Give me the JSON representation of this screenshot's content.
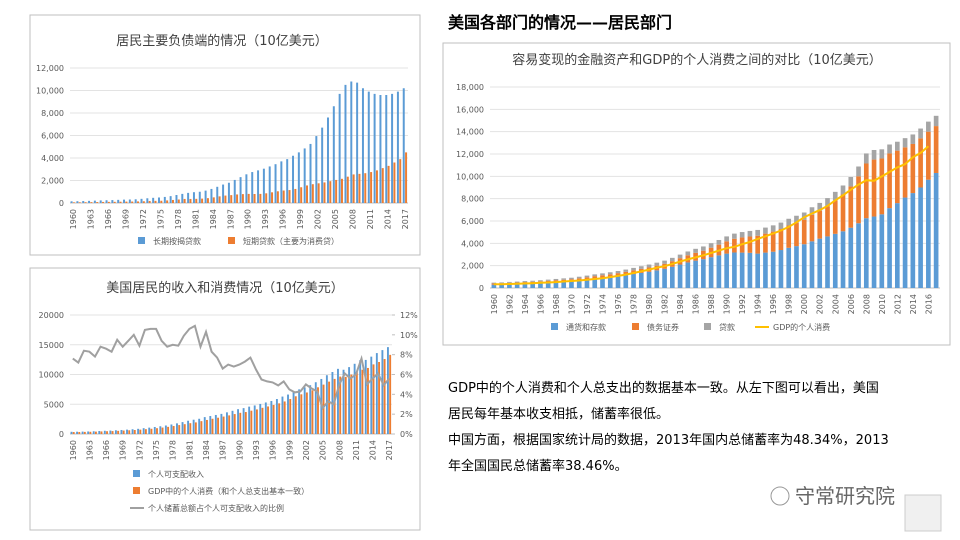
{
  "header": {
    "title": "美国各部门的情况——居民部门"
  },
  "text": {
    "lines": [
      "GDP中的个人消费和个人总支出的数据基本一致。从左下图可以看出，美国",
      "居民每年基本收支相抵，储蓄率很低。",
      "中国方面，根据国家统计局的数据，2013年国内总储蓄率为48.34%，2013",
      "年全国国民总储蓄率38.46%。"
    ]
  },
  "logo": {
    "name": "守常研究院"
  },
  "chart_data": [
    {
      "type": "bar",
      "title": "居民主要负债端的情况（10亿美元）",
      "grid": true,
      "legend": "bottom",
      "categories": [
        "1960",
        null,
        null,
        "1963",
        null,
        null,
        "1966",
        null,
        null,
        "1969",
        null,
        null,
        "1972",
        null,
        null,
        "1975",
        null,
        null,
        "1978",
        null,
        null,
        "1981",
        null,
        null,
        "1984",
        null,
        null,
        "1987",
        null,
        null,
        "1990",
        null,
        null,
        "1993",
        null,
        null,
        "1996",
        null,
        null,
        "1999",
        null,
        null,
        "2002",
        null,
        null,
        "2005",
        null,
        null,
        "2008",
        null,
        null,
        "2011",
        null,
        null,
        "2014",
        null,
        null,
        "2017"
      ],
      "ylim": [
        0,
        12000
      ],
      "yticks": [
        0,
        {
          "value": 2000,
          "label": "2,000"
        },
        {
          "value": 4000,
          "label": "4,000"
        },
        {
          "value": 6000,
          "label": "6,000"
        },
        {
          "value": 8000,
          "label": "8,000"
        },
        {
          "value": 10000,
          "label": "10,000"
        },
        {
          "value": 12000,
          "label": "12,000"
        }
      ],
      "series": [
        {
          "name": "长期按揭贷款",
          "color": "#5b9bd5",
          "values": [
            150,
            160,
            175,
            190,
            210,
            230,
            245,
            260,
            280,
            300,
            310,
            330,
            370,
            420,
            460,
            490,
            540,
            610,
            710,
            810,
            900,
            960,
            1000,
            1100,
            1250,
            1440,
            1640,
            1800,
            2050,
            2300,
            2550,
            2750,
            2900,
            3050,
            3250,
            3450,
            3700,
            3900,
            4200,
            4500,
            4850,
            5250,
            5950,
            6700,
            7600,
            8600,
            9700,
            10500,
            10800,
            10700,
            10200,
            9900,
            9700,
            9600,
            9600,
            9700,
            9900,
            10200
          ]
        },
        {
          "name": "短期贷款（主要为消费贷）",
          "color": "#ed7d31",
          "values": [
            60,
            65,
            70,
            78,
            85,
            95,
            100,
            105,
            115,
            125,
            130,
            140,
            155,
            180,
            190,
            200,
            230,
            270,
            310,
            360,
            360,
            370,
            390,
            430,
            500,
            590,
            660,
            700,
            760,
            790,
            810,
            800,
            810,
            860,
            950,
            1040,
            1110,
            1150,
            1250,
            1400,
            1560,
            1670,
            1750,
            1830,
            1940,
            2050,
            2150,
            2340,
            2540,
            2590,
            2650,
            2750,
            2900,
            3100,
            3300,
            3600,
            3900,
            4500
          ]
        }
      ]
    },
    {
      "type": "bar",
      "title": "美国居民的收入和消费情况（10亿美元）",
      "grid": true,
      "legend": "bottom",
      "categories": [
        "1960",
        null,
        null,
        "1963",
        null,
        null,
        "1966",
        null,
        null,
        "1969",
        null,
        null,
        "1972",
        null,
        null,
        "1975",
        null,
        null,
        "1978",
        null,
        null,
        "1981",
        null,
        null,
        "1984",
        null,
        null,
        "1987",
        null,
        null,
        "1990",
        null,
        null,
        "1993",
        null,
        null,
        "1996",
        null,
        null,
        "1999",
        null,
        null,
        "2002",
        null,
        null,
        "2005",
        null,
        null,
        "2008",
        null,
        null,
        "2011",
        null,
        null,
        "2014",
        null,
        null,
        "2017"
      ],
      "ylim": [
        0,
        20000
      ],
      "yticks": [
        0,
        5000,
        10000,
        15000,
        20000
      ],
      "y2lim": [
        0,
        12
      ],
      "y2ticks": [
        {
          "value": 0,
          "label": "0%"
        },
        {
          "value": 2,
          "label": "2%"
        },
        {
          "value": 4,
          "label": "4%"
        },
        {
          "value": 6,
          "label": "6%"
        },
        {
          "value": 8,
          "label": "8%"
        },
        {
          "value": 10,
          "label": "10%"
        },
        {
          "value": 12,
          "label": "12%"
        }
      ],
      "series": [
        {
          "name": "个人可支配收入",
          "color": "#5b9bd5",
          "values": [
            370,
            385,
            405,
            425,
            460,
            500,
            540,
            575,
            625,
            675,
            735,
            800,
            870,
            980,
            1070,
            1180,
            1300,
            1430,
            1600,
            1790,
            2000,
            2230,
            2400,
            2560,
            2840,
            3020,
            3200,
            3380,
            3640,
            3900,
            4170,
            4350,
            4600,
            4800,
            5050,
            5300,
            5550,
            5880,
            6290,
            6630,
            7190,
            7500,
            7840,
            8200,
            8700,
            9250,
            9880,
            10420,
            10950,
            10800,
            11240,
            11800,
            12400,
            12450,
            13000,
            13600,
            14100,
            14600
          ]
        },
        {
          "name": "GDP中的个人消费（和个人总支出基本一致）",
          "color": "#ed7d31",
          "values": [
            330,
            340,
            355,
            375,
            400,
            430,
            465,
            490,
            530,
            580,
            625,
            670,
            735,
            810,
            880,
            975,
            1080,
            1200,
            1340,
            1500,
            1650,
            1820,
            1950,
            2160,
            2360,
            2560,
            2740,
            2930,
            3130,
            3350,
            3560,
            3690,
            3920,
            4130,
            4400,
            4630,
            4880,
            5150,
            5470,
            5880,
            6340,
            6670,
            6980,
            7350,
            7850,
            8300,
            8800,
            9260,
            9650,
            9600,
            9990,
            10400,
            10800,
            11100,
            11700,
            12100,
            12600,
            13300
          ]
        },
        {
          "name": "个人储蓄总额占个人可支配收入的比例",
          "color": "#a0a0a0",
          "type": "line",
          "axis": "y2",
          "values": [
            7.6,
            7.2,
            8.4,
            8.3,
            7.8,
            8.8,
            8.6,
            8.3,
            9.5,
            8.8,
            9.4,
            10.0,
            8.9,
            10.5,
            10.6,
            10.6,
            9.4,
            8.8,
            9.0,
            8.9,
            9.9,
            10.6,
            10.9,
            8.8,
            10.3,
            8.3,
            7.7,
            6.6,
            7.0,
            6.8,
            7.0,
            7.3,
            7.7,
            6.5,
            5.5,
            5.3,
            5.2,
            4.9,
            5.3,
            4.5,
            4.2,
            4.3,
            5.0,
            4.6,
            4.3,
            2.6,
            3.3,
            3.0,
            5.0,
            6.1,
            5.6,
            6.0,
            7.6,
            5.0,
            5.6,
            6.1,
            4.9,
            5.6
          ]
        }
      ]
    },
    {
      "type": "bar",
      "stacked": true,
      "title": "容易变现的金融资产和GDP的个人消费之间的对比（10亿美元）",
      "grid": true,
      "legend": "bottom",
      "categories": [
        "1960",
        null,
        "1962",
        null,
        "1964",
        null,
        "1966",
        null,
        "1968",
        null,
        "1970",
        null,
        "1972",
        null,
        "1974",
        null,
        "1976",
        null,
        "1978",
        null,
        "1980",
        null,
        "1982",
        null,
        "1984",
        null,
        "1986",
        null,
        "1988",
        null,
        "1990",
        null,
        "1992",
        null,
        "1994",
        null,
        "1996",
        null,
        "1998",
        null,
        "2000",
        null,
        "2002",
        null,
        "2004",
        null,
        "2006",
        null,
        "2008",
        null,
        "2010",
        null,
        "2012",
        null,
        "2014",
        null,
        "2016",
        null
      ],
      "ylim": [
        0,
        18000
      ],
      "yticks": [
        0,
        {
          "value": 2000,
          "label": "2,000"
        },
        {
          "value": 4000,
          "label": "4,000"
        },
        {
          "value": 6000,
          "label": "6,000"
        },
        {
          "value": 8000,
          "label": "8,000"
        },
        {
          "value": 10000,
          "label": "10,000"
        },
        {
          "value": 12000,
          "label": "12,000"
        },
        {
          "value": 14000,
          "label": "14,000"
        },
        {
          "value": 16000,
          "label": "16,000"
        },
        {
          "value": 18000,
          "label": "18,000"
        }
      ],
      "series": [
        {
          "name": "通货和存款",
          "color": "#5b9bd5",
          "values": [
            300,
            320,
            350,
            380,
            410,
            440,
            470,
            510,
            550,
            580,
            620,
            690,
            770,
            840,
            900,
            970,
            1050,
            1150,
            1250,
            1350,
            1450,
            1580,
            1720,
            1900,
            2100,
            2290,
            2450,
            2580,
            2760,
            2920,
            3080,
            3180,
            3170,
            3150,
            3080,
            3170,
            3250,
            3400,
            3600,
            3750,
            3920,
            4180,
            4420,
            4620,
            4850,
            5080,
            5400,
            5800,
            6250,
            6400,
            6600,
            7150,
            7600,
            8100,
            8500,
            9000,
            9700,
            10300
          ]
        },
        {
          "name": "债务证券",
          "color": "#ed7d31",
          "values": [
            100,
            100,
            110,
            110,
            120,
            120,
            130,
            140,
            150,
            160,
            170,
            180,
            190,
            220,
            240,
            260,
            280,
            300,
            330,
            360,
            390,
            420,
            450,
            500,
            570,
            640,
            700,
            760,
            850,
            960,
            1100,
            1230,
            1360,
            1460,
            1600,
            1700,
            1800,
            1880,
            2000,
            2100,
            2200,
            2380,
            2500,
            2700,
            3000,
            3300,
            3700,
            4200,
            4900,
            5100,
            5000,
            4900,
            4700,
            4500,
            4400,
            4400,
            4300,
            4200
          ]
        },
        {
          "name": "贷款",
          "color": "#a5a5a5",
          "values": [
            80,
            80,
            85,
            85,
            90,
            90,
            95,
            100,
            110,
            120,
            130,
            140,
            150,
            160,
            170,
            180,
            190,
            200,
            220,
            240,
            260,
            270,
            280,
            300,
            320,
            340,
            360,
            380,
            400,
            420,
            440,
            460,
            480,
            500,
            520,
            540,
            560,
            580,
            600,
            620,
            640,
            670,
            700,
            730,
            760,
            800,
            840,
            880,
            900,
            860,
            820,
            800,
            800,
            820,
            850,
            880,
            900,
            920
          ]
        },
        {
          "name": "GDP的个人消费",
          "color": "#ffc000",
          "type": "line",
          "values": [
            330,
            340,
            355,
            375,
            400,
            430,
            465,
            490,
            530,
            580,
            625,
            670,
            735,
            810,
            880,
            975,
            1080,
            1200,
            1340,
            1500,
            1650,
            1820,
            1950,
            2160,
            2360,
            2560,
            2740,
            2930,
            3130,
            3350,
            3560,
            3690,
            3920,
            4130,
            4400,
            4630,
            4880,
            5150,
            5470,
            5880,
            6340,
            6670,
            6980,
            7350,
            7850,
            8300,
            8800,
            9260,
            9650,
            9600,
            9990,
            10400,
            10800,
            11100,
            11700,
            12100,
            12700,
            null
          ]
        }
      ]
    }
  ]
}
